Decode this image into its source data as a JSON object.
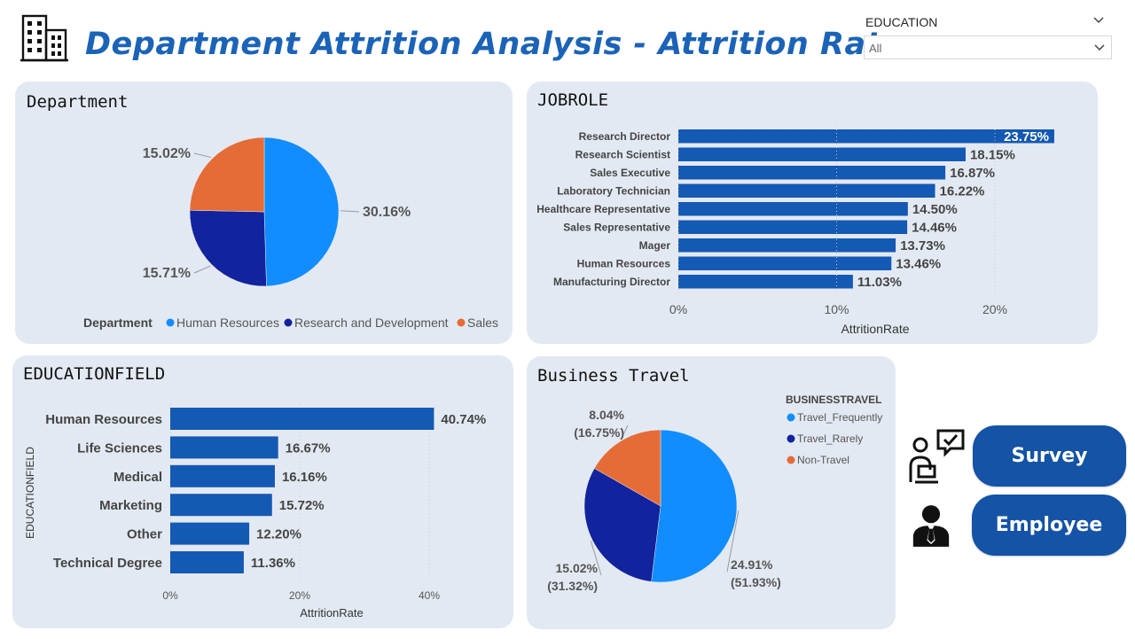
{
  "header": {
    "title": "Department Attrition Analysis - Attrition Rate",
    "icon": "building-icon"
  },
  "slicer": {
    "label": "EDUCATION",
    "value": "All"
  },
  "department_card": {
    "title": "Department"
  },
  "jobrole_card": {
    "title": "JOBROLE"
  },
  "educationfield_card": {
    "title": "EDUCATIONFIELD"
  },
  "travel_card": {
    "title": "Business Travel"
  },
  "buttons": {
    "survey": "Survey",
    "employee": "Employee"
  },
  "icons": {
    "survey": "survey-chat-icon",
    "employee": "employee-icon"
  },
  "colors": {
    "blue_light": "#118dff",
    "blue_dark": "#12239e",
    "orange": "#e66c37",
    "bar": "#1459b3",
    "title": "#1b63b7"
  },
  "chart_data": [
    {
      "id": "department",
      "type": "pie",
      "title": "Department",
      "legend_title": "Department",
      "legend_position": "bottom",
      "labels": [
        "Human Resources",
        "Research and Development",
        "Sales"
      ],
      "values": [
        30.16,
        15.71,
        15.02
      ],
      "value_labels": [
        "30.16%",
        "15.71%",
        "15.02%"
      ]
    },
    {
      "id": "jobrole",
      "type": "bar",
      "orientation": "horizontal",
      "title": "JOBROLE",
      "xlabel": "AttritionRate",
      "ylabel": "",
      "xlim": [
        0,
        25
      ],
      "xticks": [
        "0%",
        "10%",
        "20%"
      ],
      "categories": [
        "Research Director",
        "Research Scientist",
        "Sales Executive",
        "Laboratory Technician",
        "Healthcare Representative",
        "Sales Representative",
        "Mager",
        "Human Resources",
        "Manufacturing Director"
      ],
      "values": [
        23.75,
        18.15,
        16.87,
        16.22,
        14.5,
        14.46,
        13.73,
        13.46,
        11.03
      ],
      "value_labels": [
        "23.75%",
        "18.15%",
        "16.87%",
        "16.22%",
        "14.50%",
        "14.46%",
        "13.73%",
        "13.46%",
        "11.03%"
      ]
    },
    {
      "id": "educationfield",
      "type": "bar",
      "orientation": "horizontal",
      "title": "EDUCATIONFIELD",
      "xlabel": "AttritionRate",
      "ylabel": "EDUCATIONFIELD",
      "xlim": [
        0,
        45
      ],
      "xticks": [
        "0%",
        "20%",
        "40%"
      ],
      "categories": [
        "Human Resources",
        "Life Sciences",
        "Medical",
        "Marketing",
        "Other",
        "Technical Degree"
      ],
      "values": [
        40.74,
        16.67,
        16.16,
        15.72,
        12.2,
        11.36
      ],
      "value_labels": [
        "40.74%",
        "16.67%",
        "16.16%",
        "15.72%",
        "12.20%",
        "11.36%"
      ]
    },
    {
      "id": "travel",
      "type": "pie",
      "title": "Business Travel",
      "legend_title": "BUSINESSTRAVEL",
      "legend_position": "right",
      "labels": [
        "Travel_Frequently",
        "Travel_Rarely",
        "Non-Travel"
      ],
      "values": [
        24.91,
        15.02,
        8.04
      ],
      "share": [
        51.93,
        31.32,
        16.75
      ],
      "value_labels": [
        "24.91%",
        "15.02%",
        "8.04%"
      ],
      "share_labels": [
        "(51.93%)",
        "(31.32%)",
        "(16.75%)"
      ]
    }
  ]
}
